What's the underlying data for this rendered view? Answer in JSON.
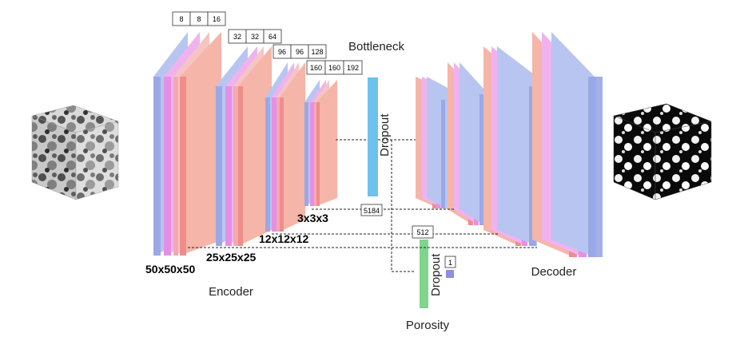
{
  "labels": {
    "bottleneck": "Bottleneck",
    "encoder": "Encoder",
    "decoder": "Decoder",
    "porosity": "Porosity",
    "dropout_main": "Dropout",
    "dropout_porosity": "Dropout"
  },
  "encoder_dims": [
    "50x50x50",
    "25x25x25",
    "12x12x12",
    "3x3x3"
  ],
  "encoder_channels": [
    [
      "8",
      "8",
      "16"
    ],
    [
      "32",
      "32",
      "64"
    ],
    [
      "96",
      "96",
      "128"
    ],
    [
      "160",
      "160",
      "192"
    ]
  ],
  "flatten_size": "5184",
  "dense_size": "512",
  "output_size": "1",
  "colors": {
    "layer_blue": "#9aa8e6",
    "layer_pink": "#e58fe6",
    "layer_rose": "#f2aab0",
    "layer_salmon": "#f5b5a8",
    "layer_red": "#ef8d8a",
    "bottleneck_blue": "#6ec1ec",
    "dense_green": "#7fd58d",
    "output_purple": "#8a8fe2"
  },
  "icons": {
    "input_cube": "grayscale-porous-cube-icon",
    "output_cube": "binary-porous-cube-icon"
  }
}
